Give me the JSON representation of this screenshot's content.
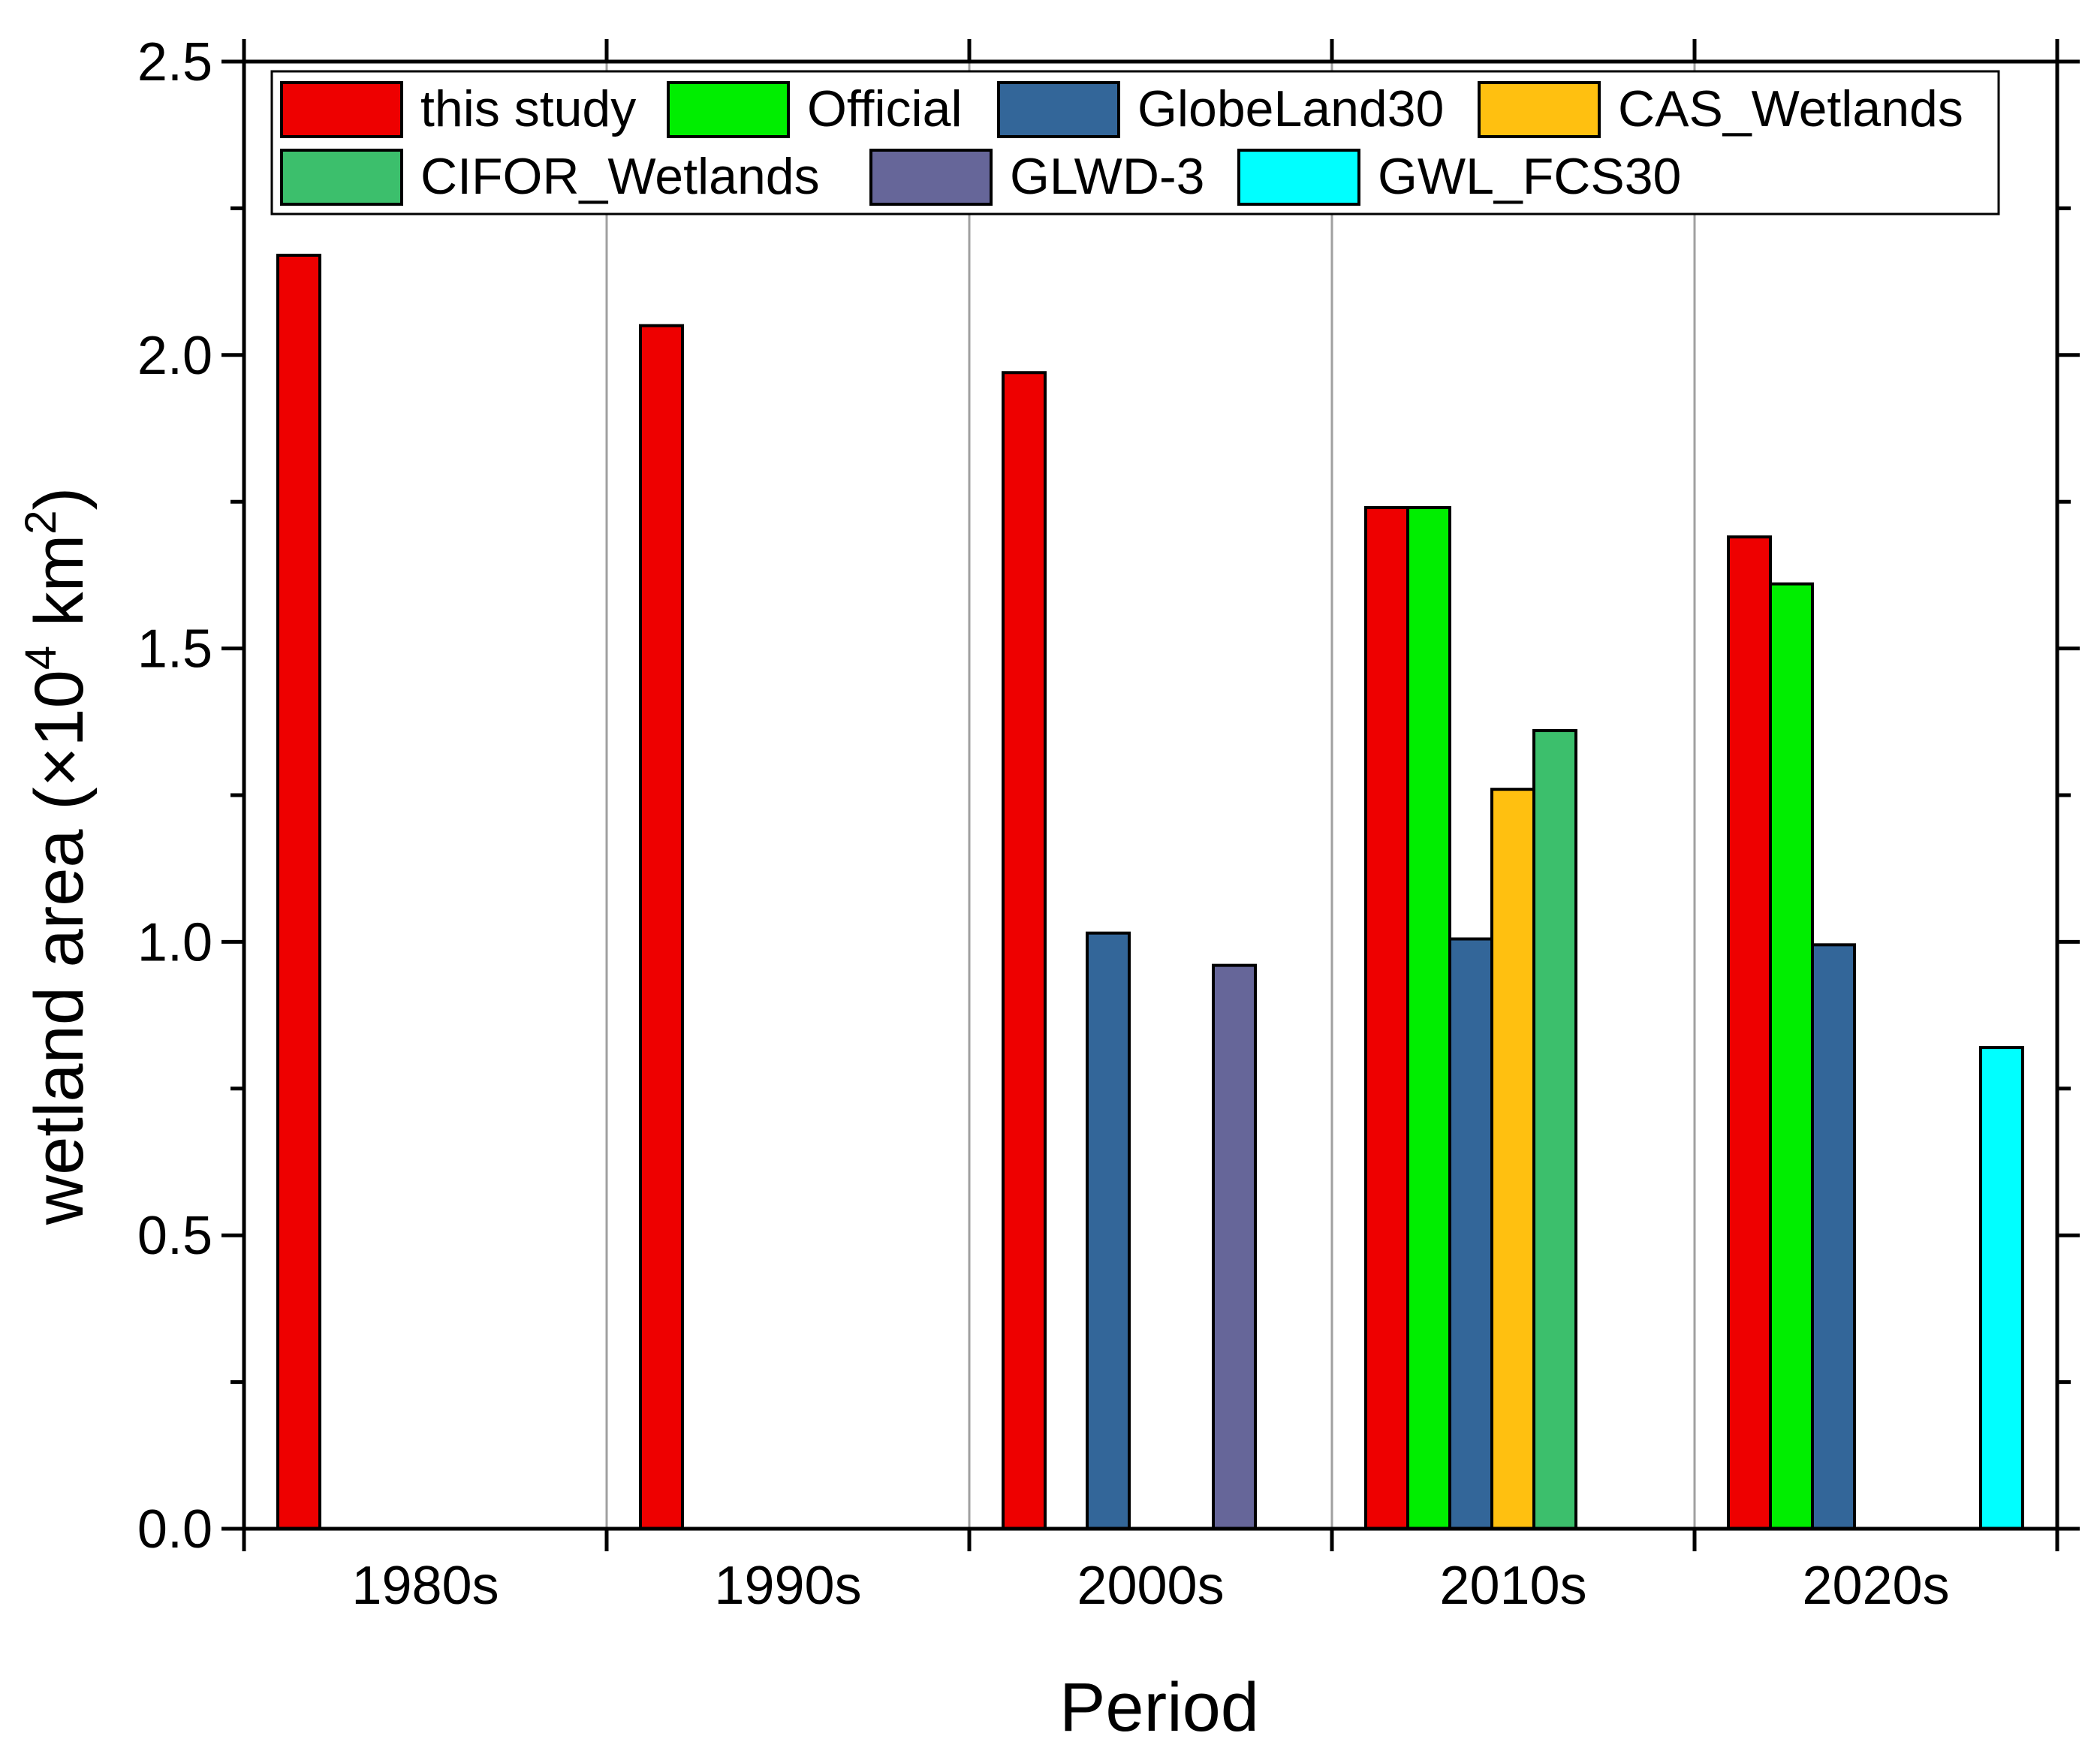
{
  "chart_data": {
    "type": "bar",
    "title": "",
    "xlabel": "Period",
    "ylabel": {
      "prefix": "wetland area (×10",
      "exp1": "4",
      "mid": " km",
      "exp2": "2",
      "suffix": ")"
    },
    "ylim": [
      0,
      2.5
    ],
    "yticks": [
      "0.0",
      "0.5",
      "1.0",
      "1.5",
      "2.0",
      "2.5"
    ],
    "categories": [
      "1980s",
      "1990s",
      "2000s",
      "2010s",
      "2020s"
    ],
    "legend_position": "top",
    "series": [
      {
        "name": "this study",
        "color": "#ee0000",
        "values": [
          2.17,
          2.05,
          1.97,
          1.74,
          1.69
        ]
      },
      {
        "name": "Official",
        "color": "#00ee00",
        "values": [
          null,
          null,
          null,
          1.74,
          1.61
        ]
      },
      {
        "name": "GlobeLand30",
        "color": "#336699",
        "values": [
          null,
          null,
          1.015,
          1.005,
          0.995
        ]
      },
      {
        "name": "CAS_Wetlands",
        "color": "#ffc010",
        "values": [
          null,
          null,
          null,
          1.26,
          null
        ]
      },
      {
        "name": "CIFOR_Wetlands",
        "color": "#3cbf6c",
        "values": [
          null,
          null,
          null,
          1.36,
          null
        ]
      },
      {
        "name": "GLWD-3",
        "color": "#666699",
        "values": [
          null,
          null,
          0.96,
          null,
          null
        ]
      },
      {
        "name": "GWL_FCS30",
        "color": "#00ffff",
        "values": [
          null,
          null,
          null,
          null,
          0.82
        ]
      }
    ]
  }
}
